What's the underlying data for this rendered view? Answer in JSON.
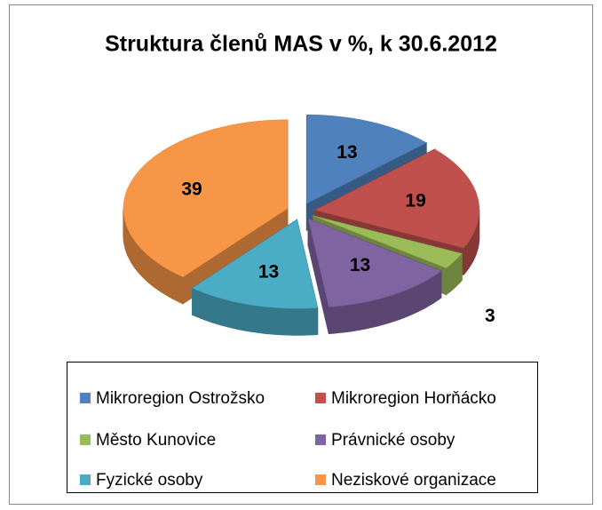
{
  "chart_data": {
    "type": "pie",
    "title": "Struktura členů MAS v %, k 30.6.2012",
    "categories": [
      "Mikroregion Ostrožsko",
      "Mikroregion Horňácko",
      "Město Kunovice",
      "Právnické osoby",
      "Fyzické osoby",
      "Neziskové organizace"
    ],
    "values": [
      13,
      19,
      3,
      13,
      13,
      39
    ],
    "colors": [
      "#4f81bd",
      "#c0504d",
      "#9bbb59",
      "#8064a2",
      "#4bacc6",
      "#f79646"
    ],
    "legend": "bottom"
  }
}
